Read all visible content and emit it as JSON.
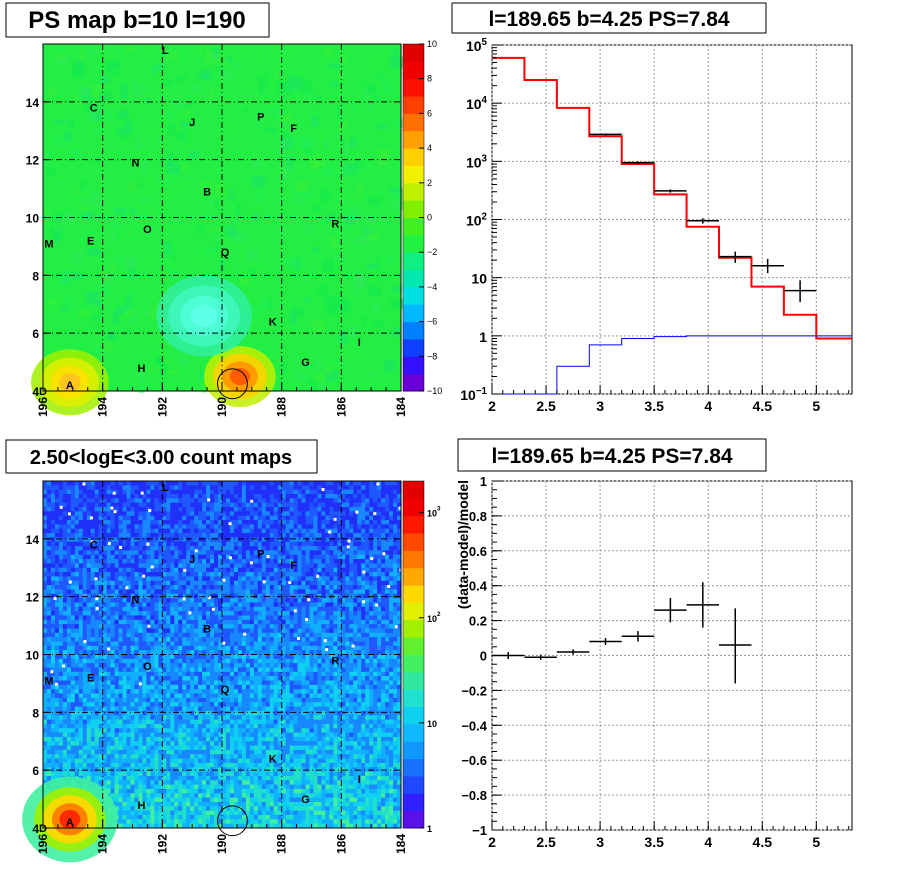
{
  "chart_data": [
    {
      "type": "heatmap",
      "title": "PS map b=10 l=190",
      "x_ticks": [
        "196",
        "194",
        "192",
        "190",
        "188",
        "186",
        "184"
      ],
      "y_ticks": [
        "4",
        "6",
        "8",
        "10",
        "12",
        "14"
      ],
      "xlim": [
        196,
        184
      ],
      "ylim": [
        4,
        16
      ],
      "colorbar": {
        "range": [
          -10,
          10
        ],
        "ticks": [
          "10",
          "8",
          "6",
          "4",
          "2",
          "0",
          "−2",
          "−4",
          "−6",
          "−8",
          "−10"
        ],
        "colors": [
          "#6a00d8",
          "#3410ff",
          "#1040ff",
          "#0080ff",
          "#00b8ff",
          "#00e0e0",
          "#00e8b0",
          "#10f080",
          "#20f040",
          "#40f020",
          "#80f000",
          "#c0f000",
          "#f0f000",
          "#ffd000",
          "#ffa000",
          "#ff7000",
          "#ff4000",
          "#ff1000",
          "#f00000",
          "#e00000"
        ]
      },
      "background": "#22ee44",
      "hotspots": [
        {
          "l": 195.1,
          "b": 4.3,
          "color": "#ffd020",
          "radius_deg": 1.3
        },
        {
          "l": 189.4,
          "b": 4.5,
          "color": "#ff7010",
          "radius_deg": 1.2
        },
        {
          "l": 190.6,
          "b": 6.6,
          "color": "#40ffd0",
          "radius_deg": 1.6
        }
      ],
      "source_labels": [
        {
          "text": "L",
          "l": 191.9,
          "b": 15.8
        },
        {
          "text": "C",
          "l": 194.3,
          "b": 13.8
        },
        {
          "text": "J",
          "l": 191.0,
          "b": 13.3
        },
        {
          "text": "P",
          "l": 188.7,
          "b": 13.5
        },
        {
          "text": "F",
          "l": 187.6,
          "b": 13.1
        },
        {
          "text": "N",
          "l": 192.9,
          "b": 11.9
        },
        {
          "text": "B",
          "l": 190.5,
          "b": 10.9
        },
        {
          "text": "R",
          "l": 186.2,
          "b": 9.8
        },
        {
          "text": "O",
          "l": 192.5,
          "b": 9.6
        },
        {
          "text": "M",
          "l": 195.8,
          "b": 9.1
        },
        {
          "text": "E",
          "l": 194.4,
          "b": 9.2
        },
        {
          "text": "Q",
          "l": 189.9,
          "b": 8.8
        },
        {
          "text": "K",
          "l": 188.3,
          "b": 6.4
        },
        {
          "text": "I",
          "l": 185.4,
          "b": 5.7
        },
        {
          "text": "G",
          "l": 187.2,
          "b": 5.0
        },
        {
          "text": "H",
          "l": 192.7,
          "b": 4.8
        },
        {
          "text": "A",
          "l": 195.1,
          "b": 4.2
        },
        {
          "text": "D",
          "l": 196.0,
          "b": 4.0
        }
      ],
      "circle": {
        "l": 189.65,
        "b": 4.25,
        "radius_deg": 0.5
      }
    },
    {
      "type": "line",
      "title": "l=189.65 b=4.25 PS=7.84",
      "xlim": [
        2,
        5.33
      ],
      "ylog": true,
      "ylim": [
        0.1,
        100000
      ],
      "x_ticks": [
        "2",
        "2.5",
        "3",
        "3.5",
        "4",
        "4.5",
        "5"
      ],
      "y_ticks": [
        {
          "value": 0.1,
          "label": "10",
          "exp": "−1"
        },
        {
          "value": 1,
          "label": "1",
          "exp": ""
        },
        {
          "value": 10,
          "label": "10",
          "exp": ""
        },
        {
          "value": 100,
          "label": "10",
          "exp": "2"
        },
        {
          "value": 1000,
          "label": "10",
          "exp": "3"
        },
        {
          "value": 10000,
          "label": "10",
          "exp": "4"
        },
        {
          "value": 100000,
          "label": "10",
          "exp": "5"
        }
      ],
      "grid": true,
      "series": [
        {
          "color": "#ff0000",
          "kind": "step",
          "edges": [
            2.0,
            2.3,
            2.6,
            2.9,
            3.2,
            3.5,
            3.8,
            4.1,
            4.4,
            4.7,
            5.0,
            5.33
          ],
          "values": [
            60000,
            25000,
            8300,
            2700,
            900,
            270,
            75,
            22,
            7,
            2.3,
            0.9
          ]
        },
        {
          "color": "#0000ff",
          "kind": "step",
          "edges": [
            2.0,
            2.3,
            2.6,
            2.9,
            3.2,
            3.5,
            3.8,
            4.1,
            4.4,
            4.7,
            5.0,
            5.33
          ],
          "values": [
            0.1,
            0.1,
            0.3,
            0.7,
            0.9,
            0.97,
            1.0,
            1.0,
            1.0,
            1.0,
            1.0
          ]
        },
        {
          "color": "#000000",
          "kind": "points",
          "points": [
            {
              "x": 3.05,
              "y": 2900,
              "xerr": 0.15,
              "ylo": 2800,
              "yhi": 3000
            },
            {
              "x": 3.35,
              "y": 950,
              "xerr": 0.15,
              "ylo": 900,
              "yhi": 1000
            },
            {
              "x": 3.65,
              "y": 310,
              "xerr": 0.15,
              "ylo": 290,
              "yhi": 330
            },
            {
              "x": 3.95,
              "y": 95,
              "xerr": 0.15,
              "ylo": 85,
              "yhi": 105
            },
            {
              "x": 4.25,
              "y": 23,
              "xerr": 0.15,
              "ylo": 18,
              "yhi": 28
            },
            {
              "x": 4.55,
              "y": 16,
              "xerr": 0.15,
              "ylo": 12,
              "yhi": 21
            },
            {
              "x": 4.85,
              "y": 6,
              "xerr": 0.15,
              "ylo": 3.8,
              "yhi": 9
            }
          ]
        }
      ]
    },
    {
      "type": "heatmap",
      "title": "2.50<logE<3.00 count maps",
      "x_ticks": [
        "196",
        "194",
        "192",
        "190",
        "188",
        "186",
        "184"
      ],
      "y_ticks": [
        "4",
        "6",
        "8",
        "10",
        "12",
        "14"
      ],
      "xlim": [
        196,
        184
      ],
      "ylim": [
        4,
        16
      ],
      "colorbar": {
        "log": true,
        "range": [
          1,
          2000
        ],
        "ticks": [
          {
            "value": 1000,
            "label": "10",
            "exp": "3"
          },
          {
            "value": 100,
            "label": "10",
            "exp": "2"
          },
          {
            "value": 10,
            "label": "10",
            "exp": ""
          },
          {
            "value": 1,
            "label": "1",
            "exp": ""
          }
        ],
        "colors": [
          "#5a10e8",
          "#3020ff",
          "#2048ff",
          "#1870ff",
          "#1098ff",
          "#10b8ff",
          "#10d0f0",
          "#20e0d0",
          "#30e8a0",
          "#40f060",
          "#60f030",
          "#a0f000",
          "#e0f000",
          "#ffd800",
          "#ffa800",
          "#ff7800",
          "#ff4800",
          "#ff1800",
          "#f00000",
          "#e00000"
        ]
      },
      "hotspots": [
        {
          "l": 195.1,
          "b": 4.3,
          "color": "#ff2000",
          "radius_deg": 1.0
        }
      ],
      "source_labels": [
        {
          "text": "L",
          "l": 191.9,
          "b": 15.8
        },
        {
          "text": "C",
          "l": 194.3,
          "b": 13.8
        },
        {
          "text": "J",
          "l": 191.0,
          "b": 13.3
        },
        {
          "text": "P",
          "l": 188.7,
          "b": 13.5
        },
        {
          "text": "F",
          "l": 187.6,
          "b": 13.1
        },
        {
          "text": "N",
          "l": 192.9,
          "b": 11.9
        },
        {
          "text": "B",
          "l": 190.5,
          "b": 10.9
        },
        {
          "text": "R",
          "l": 186.2,
          "b": 9.8
        },
        {
          "text": "O",
          "l": 192.5,
          "b": 9.6
        },
        {
          "text": "M",
          "l": 195.8,
          "b": 9.1
        },
        {
          "text": "E",
          "l": 194.4,
          "b": 9.2
        },
        {
          "text": "Q",
          "l": 189.9,
          "b": 8.8
        },
        {
          "text": "K",
          "l": 188.3,
          "b": 6.4
        },
        {
          "text": "I",
          "l": 185.4,
          "b": 5.7
        },
        {
          "text": "G",
          "l": 187.2,
          "b": 5.0
        },
        {
          "text": "H",
          "l": 192.7,
          "b": 4.8
        },
        {
          "text": "A",
          "l": 195.1,
          "b": 4.2
        },
        {
          "text": "D",
          "l": 196.0,
          "b": 4.0
        }
      ],
      "circle": {
        "l": 189.65,
        "b": 4.25,
        "radius_deg": 0.5
      }
    },
    {
      "type": "scatter",
      "title": "l=189.65 b=4.25 PS=7.84",
      "ylabel": "(data-model)/model",
      "xlim": [
        2,
        5.33
      ],
      "ylim": [
        -1,
        1
      ],
      "x_ticks": [
        "2",
        "2.5",
        "3",
        "3.5",
        "4",
        "4.5",
        "5"
      ],
      "y_ticks": [
        "1",
        "0.8",
        "0.6",
        "0.4",
        "0.2",
        "0",
        "−0.2",
        "−0.4",
        "−0.6",
        "−0.8",
        "−1"
      ],
      "grid": true,
      "points": [
        {
          "x": 2.15,
          "y": 0.0,
          "xerr": 0.15,
          "ylo": -0.02,
          "yhi": 0.02
        },
        {
          "x": 2.45,
          "y": -0.01,
          "xerr": 0.15,
          "ylo": -0.025,
          "yhi": 0.005
        },
        {
          "x": 2.75,
          "y": 0.02,
          "xerr": 0.15,
          "ylo": 0.005,
          "yhi": 0.035
        },
        {
          "x": 3.05,
          "y": 0.08,
          "xerr": 0.15,
          "ylo": 0.06,
          "yhi": 0.1
        },
        {
          "x": 3.35,
          "y": 0.11,
          "xerr": 0.15,
          "ylo": 0.08,
          "yhi": 0.14
        },
        {
          "x": 3.65,
          "y": 0.26,
          "xerr": 0.15,
          "ylo": 0.19,
          "yhi": 0.33
        },
        {
          "x": 3.95,
          "y": 0.29,
          "xerr": 0.15,
          "ylo": 0.16,
          "yhi": 0.42
        },
        {
          "x": 4.25,
          "y": 0.06,
          "xerr": 0.15,
          "ylo": -0.16,
          "yhi": 0.27
        }
      ]
    }
  ]
}
